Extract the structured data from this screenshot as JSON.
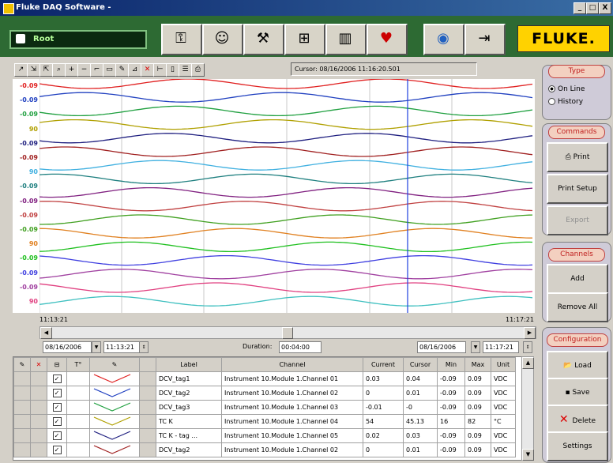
{
  "window": {
    "title": "Fluke DAQ Software -",
    "minimize": "_",
    "maximize": "□",
    "close": "X"
  },
  "header": {
    "user": "Root",
    "brand": "FLUKE."
  },
  "toolbar_icons": [
    "key-icon",
    "user-icon",
    "instrument-icon",
    "network-icon",
    "chart-icon",
    "alarm-icon",
    "globe-icon",
    "exit-icon"
  ],
  "chart": {
    "cursor_text": "Cursor: 08/16/2006 11:16:20.501",
    "y_labels": [
      "-0.09",
      "-0.09",
      "-0.09",
      "90",
      "-0.09",
      "-0.09",
      "90",
      "-0.09",
      "-0.09",
      "-0.09",
      "-0.09",
      "90",
      "-0.09",
      "-0.09",
      "-0.09",
      "90"
    ],
    "time_start": "11:13:21",
    "time_end": "11:17:21",
    "start_date": "08/16/2006",
    "start_time": "11:13:21",
    "duration_label": "Duration:",
    "duration_value": "00:04:00",
    "end_date": "08/16/2006",
    "end_time": "11:17:21"
  },
  "table": {
    "headers": [
      "Label",
      "Channel",
      "Current",
      "Cursor",
      "Min",
      "Max",
      "Unit"
    ],
    "rows": [
      {
        "label": "DCV_tag1",
        "channel": "Instrument 10.Module 1.Channel 01",
        "current": "0.03",
        "cursor": "0.04",
        "min": "-0.09",
        "max": "0.09",
        "unit": "VDC"
      },
      {
        "label": "DCV_tag2",
        "channel": "Instrument 10.Module 1.Channel 02",
        "current": "0",
        "cursor": "0.01",
        "min": "-0.09",
        "max": "0.09",
        "unit": "VDC"
      },
      {
        "label": "DCV_tag3",
        "channel": "Instrument 10.Module 1.Channel 03",
        "current": "-0.01",
        "cursor": "-0",
        "min": "-0.09",
        "max": "0.09",
        "unit": "VDC"
      },
      {
        "label": "TC K",
        "channel": "Instrument 10.Module 1.Channel 04",
        "current": "54",
        "cursor": "45.13",
        "min": "16",
        "max": "82",
        "unit": "°C"
      },
      {
        "label": "TC K - tag ...",
        "channel": "Instrument 10.Module 1.Channel 05",
        "current": "0.02",
        "cursor": "0.03",
        "min": "-0.09",
        "max": "0.09",
        "unit": "VDC"
      },
      {
        "label": "DCV_tag2",
        "channel": "Instrument 10.Module 1.Channel 02",
        "current": "0",
        "cursor": "0.01",
        "min": "-0.09",
        "max": "0.09",
        "unit": "VDC"
      }
    ]
  },
  "panel": {
    "type_title": "Type",
    "online": "On Line",
    "history": "History",
    "commands_title": "Commands",
    "print": "Print",
    "print_setup": "Print Setup",
    "export": "Export",
    "channels_title": "Channels",
    "add": "Add",
    "remove_all": "Remove All",
    "config_title": "Configuration",
    "load": "Load",
    "save": "Save",
    "delete": "Delete",
    "settings": "Settings"
  },
  "colors": {
    "trace": [
      "#e02020",
      "#2040c0",
      "#20a040",
      "#b0a000",
      "#202080",
      "#a02020",
      "#40b0e0",
      "#208080",
      "#802080",
      "#c04040",
      "#40a020",
      "#e08020",
      "#20c020",
      "#4040e0",
      "#a040a0",
      "#e04080",
      "#40c0c0"
    ]
  }
}
